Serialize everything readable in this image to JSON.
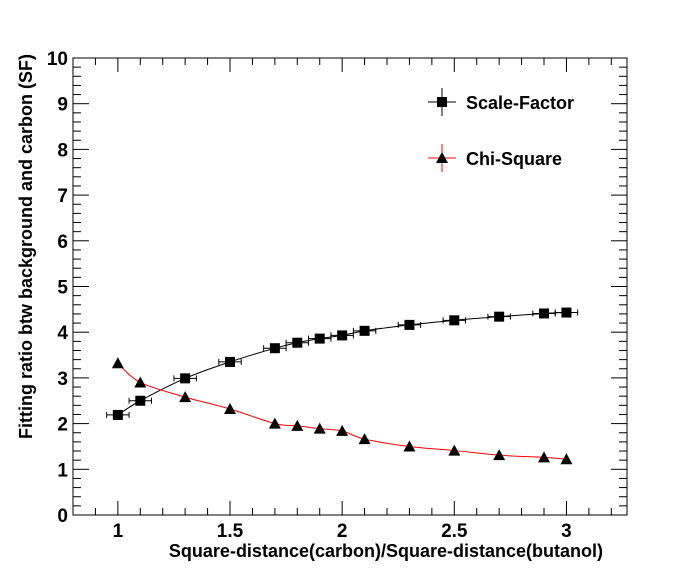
{
  "chart_data": {
    "type": "line",
    "xlabel": "Square-distance(carbon)/Square-distance(butanol)",
    "ylabel": "Fitting ratio btw background and carbon (SF)",
    "xlim": [
      0.8,
      3.27
    ],
    "ylim": [
      0,
      10
    ],
    "x_ticks": [
      1,
      1.5,
      2,
      2.5,
      3
    ],
    "x_tick_labels": [
      "1",
      "1.5",
      "2",
      "2.5",
      "3"
    ],
    "y_ticks": [
      0,
      1,
      2,
      3,
      4,
      5,
      6,
      7,
      8,
      9,
      10
    ],
    "y_tick_labels": [
      "0",
      "1",
      "2",
      "3",
      "4",
      "5",
      "6",
      "7",
      "8",
      "9",
      "10"
    ],
    "grid": false,
    "legend_position": "top-right",
    "series": [
      {
        "name": "Scale-Factor",
        "marker": "square",
        "color": "#000000",
        "x": [
          1.0,
          1.1,
          1.3,
          1.5,
          1.7,
          1.8,
          1.9,
          2.0,
          2.1,
          2.3,
          2.5,
          2.7,
          2.9,
          3.0
        ],
        "y": [
          2.19,
          2.5,
          2.99,
          3.35,
          3.65,
          3.77,
          3.86,
          3.93,
          4.03,
          4.16,
          4.26,
          4.34,
          4.41,
          4.43
        ],
        "x_err": [
          0.05,
          0.05,
          0.05,
          0.05,
          0.05,
          0.05,
          0.05,
          0.05,
          0.05,
          0.05,
          0.05,
          0.05,
          0.05,
          0.05
        ]
      },
      {
        "name": "Chi-Square",
        "marker": "triangle",
        "color": "#ff0000",
        "marker_color": "#000000",
        "x": [
          1.0,
          1.1,
          1.3,
          1.5,
          1.7,
          1.8,
          1.9,
          2.0,
          2.1,
          2.3,
          2.5,
          2.7,
          2.9,
          3.0
        ],
        "y": [
          3.32,
          2.9,
          2.58,
          2.32,
          2.0,
          1.95,
          1.89,
          1.84,
          1.66,
          1.5,
          1.41,
          1.31,
          1.26,
          1.22
        ]
      }
    ]
  }
}
